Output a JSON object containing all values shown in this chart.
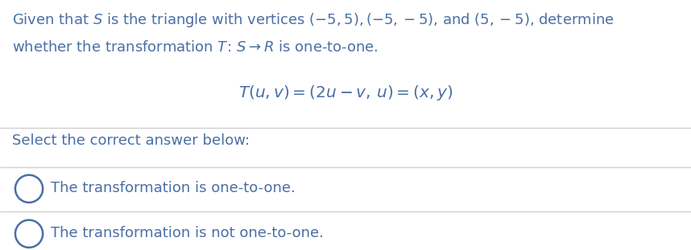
{
  "bg_color": "#ffffff",
  "text_color": "#4a6fa5",
  "line_color": "#d0d0d0",
  "q_line1_plain": "Given that ",
  "q_line1_S": "S",
  "q_line1_mid": " is the triangle with vertices − 5, 5), (−5, −5), and (5, −5), determine",
  "q_line1_full": "Given that $\\mathit{S}$ is the triangle with vertices $(-5, 5), (-5, -5)$, and $(5, -5)$, determine",
  "q_line2_full": "whether the transformation $\\mathit{T}\\!:\\, S \\rightarrow R$ is one-to-one.",
  "formula": "$T(u, v) = (2u - v,\\, u) = (x, y)$",
  "prompt": "Select the correct answer below:",
  "answer1": "The transformation is one-to-one.",
  "answer2": "The transformation is not one-to-one.",
  "fontsize_main": 13.0,
  "fontsize_formula": 14.5,
  "figwidth": 8.58,
  "figheight": 3.11,
  "dpi": 100
}
